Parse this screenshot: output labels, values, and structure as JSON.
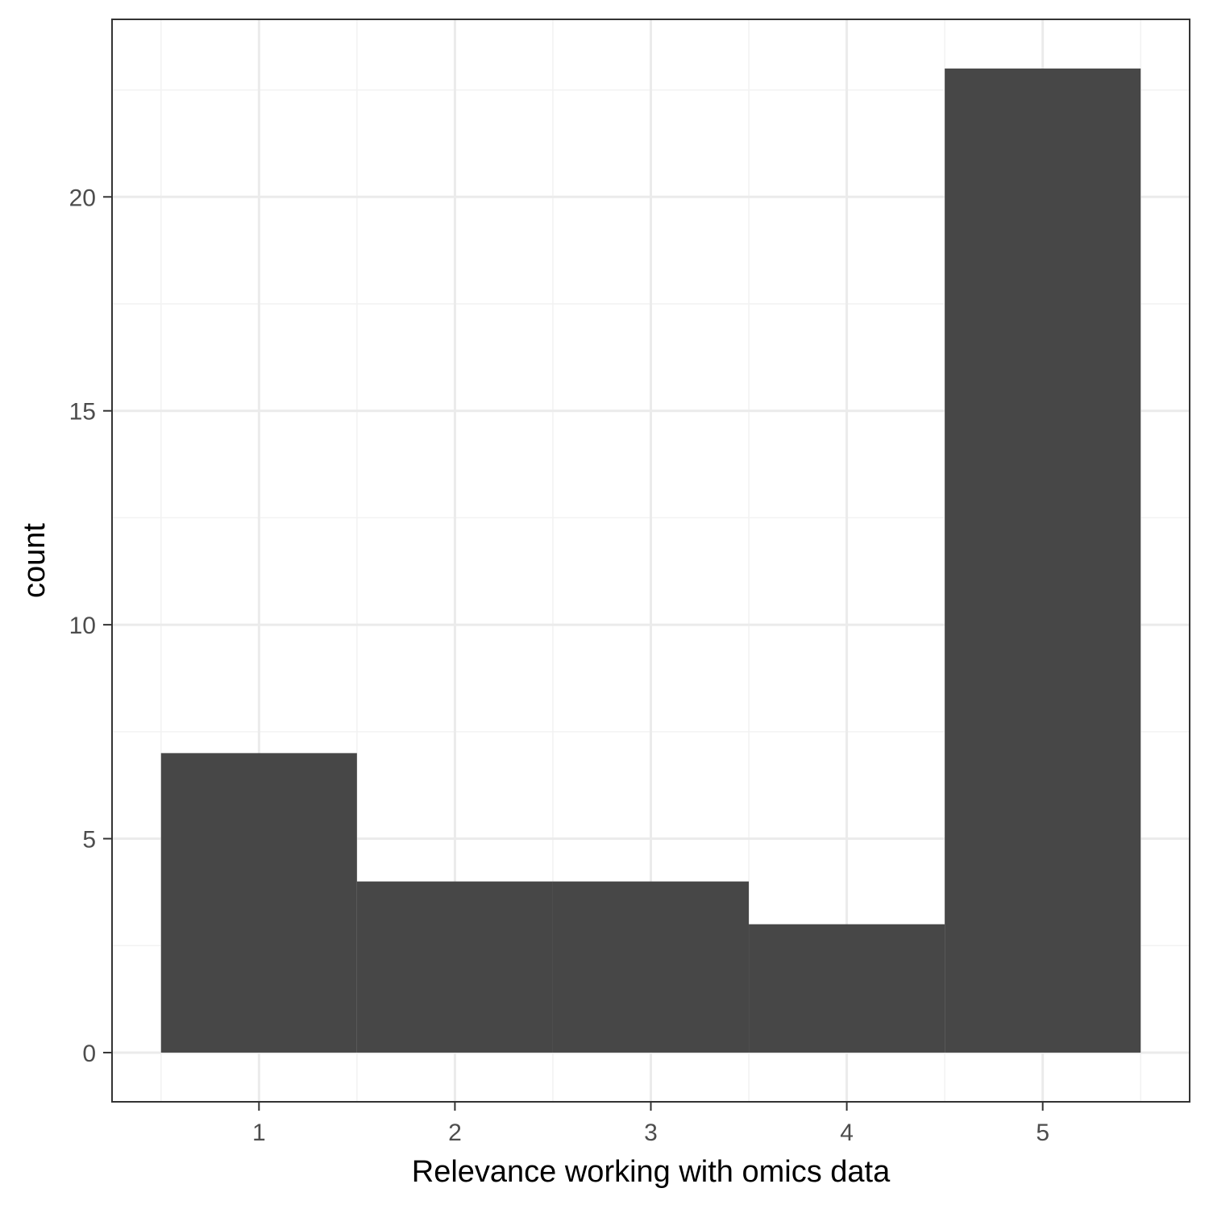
{
  "chart_data": {
    "type": "bar",
    "chart_subtype": "histogram",
    "title": "",
    "xlabel": "Relevance working with omics data",
    "ylabel": "count",
    "categories": [
      "1",
      "2",
      "3",
      "4",
      "5"
    ],
    "x": [
      1,
      2,
      3,
      4,
      5
    ],
    "values": [
      7,
      4,
      4,
      3,
      23
    ],
    "bin_width": 1,
    "xlim": [
      0.25,
      5.75
    ],
    "ylim": [
      -1.15,
      24.15
    ],
    "xticks": [
      1,
      2,
      3,
      4,
      5
    ],
    "yticks": [
      0,
      5,
      10,
      15,
      20
    ],
    "grid": true,
    "legend": "none",
    "colors": {
      "bar": "#474747",
      "panel_background": "#ffffff",
      "grid_major": "#ebebeb",
      "grid_minor": "#f2f2f2",
      "panel_border": "#333333",
      "tick_label": "#4d4d4d",
      "axis_title": "#000000"
    }
  }
}
